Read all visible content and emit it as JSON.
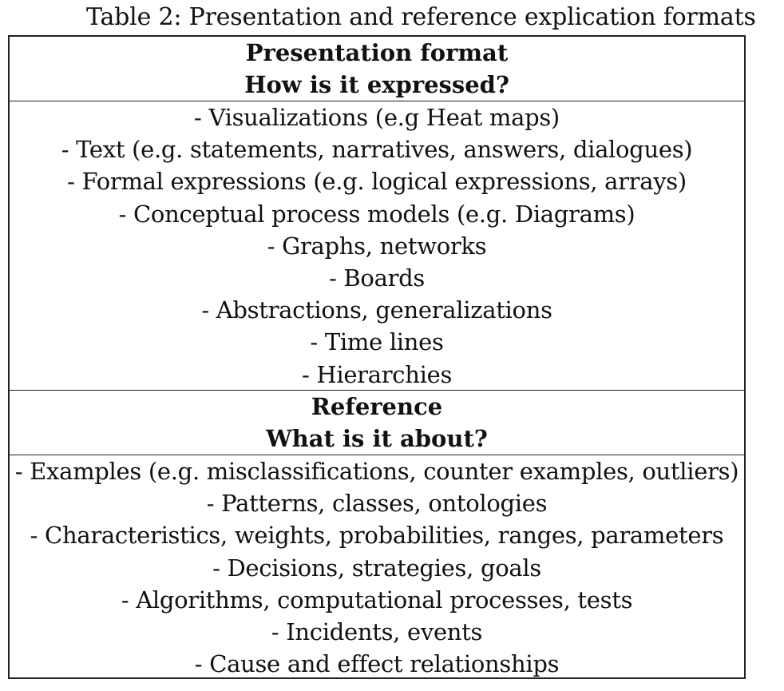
{
  "caption": "Table 2: Presentation and reference explication formats",
  "presentation": {
    "header_title": "Presentation format",
    "header_question": "How is it expressed?",
    "items": [
      "- Visualizations (e.g Heat maps)",
      "- Text (e.g. statements, narratives, answers, dialogues)",
      "- Formal expressions (e.g. logical expressions, arrays)",
      "- Conceptual process models (e.g. Diagrams)",
      "- Graphs, networks",
      "- Boards",
      "- Abstractions, generalizations",
      "- Time lines",
      "- Hierarchies"
    ]
  },
  "reference": {
    "header_title": "Reference",
    "header_question": "What is it about?",
    "items": [
      "- Examples (e.g. misclassifications, counter examples, outliers)",
      "- Patterns, classes, ontologies",
      "- Characteristics, weights, probabilities, ranges, parameters",
      "- Decisions, strategies, goals",
      "- Algorithms, computational processes, tests",
      "- Incidents, events",
      "- Cause and effect relationships"
    ]
  }
}
